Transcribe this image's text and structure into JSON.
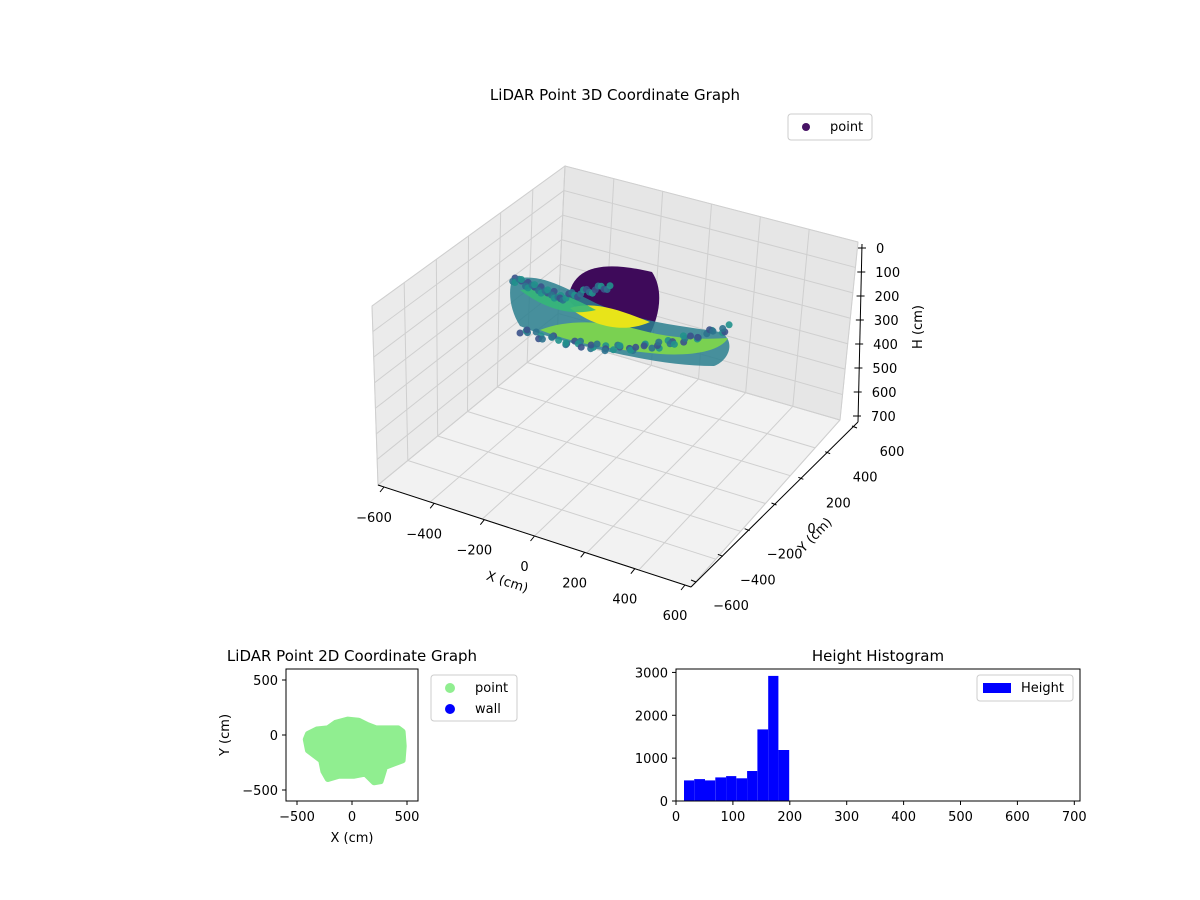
{
  "colors": {
    "background": "#ffffff",
    "pane_floor": "#f2f2f2",
    "pane_back": "#ebebeb",
    "pane_side": "#e6e6e6",
    "grid": "#cfcfcf",
    "point_2d": "#90ee90",
    "wall": "#0000ff",
    "histogram": "#0000ff",
    "viridis_dark": "#440154",
    "viridis_mid": "#21918c",
    "viridis_light": "#fde725"
  },
  "chart_data": [
    {
      "id": "lidar-3d",
      "type": "scatter",
      "title": "LiDAR Point 3D Coordinate Graph",
      "xlabel": "X (cm)",
      "ylabel": "Y (cm)",
      "zlabel": "H (cm)",
      "xlim": [
        -600,
        600
      ],
      "ylim": [
        -600,
        600
      ],
      "zlim": [
        0,
        700
      ],
      "z_inverted": true,
      "x_ticks": [
        "−600",
        "−400",
        "−200",
        "0",
        "200",
        "400",
        "600"
      ],
      "y_ticks": [
        "−600",
        "−400",
        "−200",
        "0",
        "200",
        "400",
        "600"
      ],
      "z_ticks": [
        "0",
        "100",
        "200",
        "300",
        "400",
        "500",
        "600",
        "700"
      ],
      "grid": true,
      "colormap": "viridis",
      "legend": {
        "placement": "top-right",
        "entries": [
          {
            "label": "point"
          }
        ]
      }
    },
    {
      "id": "lidar-2d",
      "type": "scatter",
      "title": "LiDAR Point 2D Coordinate Graph",
      "xlabel": "X (cm)",
      "ylabel": "Y (cm)",
      "xlim": [
        -600,
        600
      ],
      "ylim": [
        -600,
        600
      ],
      "x_ticks": [
        "−500",
        "0",
        "500"
      ],
      "y_ticks": [
        "−500",
        "0",
        "500"
      ],
      "legend": {
        "placement": "outside-right",
        "entries": [
          {
            "label": "point"
          },
          {
            "label": "wall"
          }
        ]
      }
    },
    {
      "id": "height-histogram",
      "type": "bar",
      "title": "Height Histogram",
      "xlim": [
        0,
        710
      ],
      "ylim": [
        0,
        3080
      ],
      "x_ticks": [
        "0",
        "100",
        "200",
        "300",
        "400",
        "500",
        "600",
        "700"
      ],
      "y_ticks": [
        "0",
        "1000",
        "2000",
        "3000"
      ],
      "bins": [
        {
          "x0": 14,
          "x1": 32,
          "value": 480
        },
        {
          "x0": 32,
          "x1": 51,
          "value": 510
        },
        {
          "x0": 51,
          "x1": 69,
          "value": 480
        },
        {
          "x0": 69,
          "x1": 88,
          "value": 550
        },
        {
          "x0": 88,
          "x1": 106,
          "value": 580
        },
        {
          "x0": 106,
          "x1": 125,
          "value": 530
        },
        {
          "x0": 125,
          "x1": 143,
          "value": 700
        },
        {
          "x0": 143,
          "x1": 162,
          "value": 1670
        },
        {
          "x0": 162,
          "x1": 180,
          "value": 2920
        },
        {
          "x0": 180,
          "x1": 199,
          "value": 1190
        },
        {
          "x0": 199,
          "x1": 208,
          "value": 0
        }
      ],
      "legend": {
        "placement": "top-right",
        "entries": [
          {
            "label": "Height"
          }
        ]
      }
    }
  ]
}
